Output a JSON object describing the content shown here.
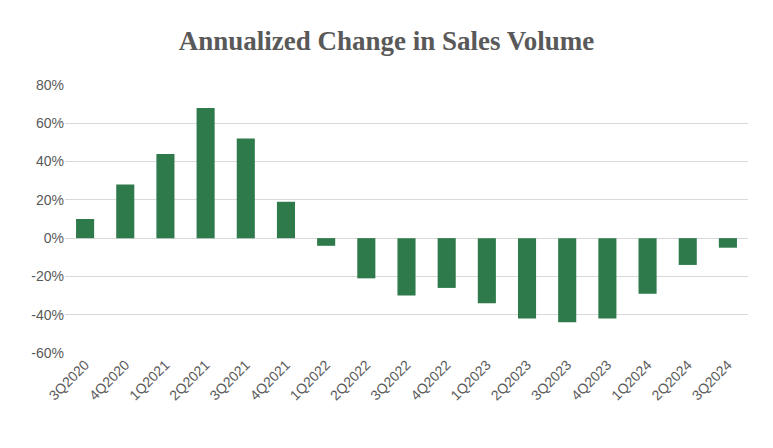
{
  "chart_data": {
    "type": "bar",
    "title": "Annualized Change in Sales Volume",
    "categories": [
      "3Q2020",
      "4Q2020",
      "1Q2021",
      "2Q2021",
      "3Q2021",
      "4Q2021",
      "1Q2022",
      "2Q2022",
      "3Q2022",
      "4Q2022",
      "1Q2023",
      "2Q2023",
      "3Q2023",
      "4Q2023",
      "1Q2024",
      "2Q2024",
      "3Q2024"
    ],
    "values": [
      10,
      28,
      44,
      68,
      52,
      19,
      -4,
      -21,
      -30,
      -26,
      -34,
      -42,
      -44,
      -42,
      -29,
      -14,
      -5
    ],
    "color": "#2e7a4b",
    "ylim": [
      -60,
      80
    ],
    "yticks": [
      {
        "value": -60,
        "label": "-60%"
      },
      {
        "value": -40,
        "label": "-40%"
      },
      {
        "value": -20,
        "label": "-20%"
      },
      {
        "value": 0,
        "label": "0%"
      },
      {
        "value": 20,
        "label": "20%"
      },
      {
        "value": 40,
        "label": "40%"
      },
      {
        "value": 60,
        "label": "60%"
      },
      {
        "value": 80,
        "label": "80%"
      }
    ],
    "grid": true
  }
}
